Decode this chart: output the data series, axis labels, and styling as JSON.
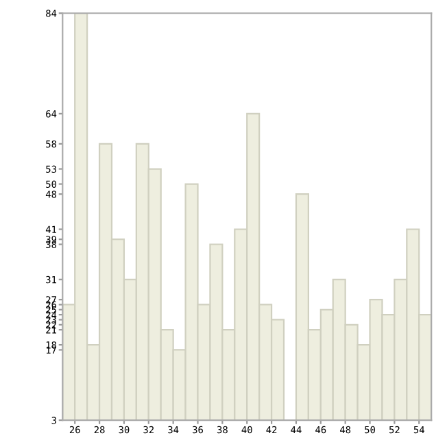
{
  "chart_data": {
    "type": "bar",
    "x": [
      25.5,
      26.5,
      27.5,
      28.5,
      29.5,
      30.5,
      31.5,
      32.5,
      33.5,
      34.5,
      35.5,
      36.5,
      37.5,
      38.5,
      39.5,
      40.5,
      41.5,
      42.5,
      43.5,
      44.5,
      45.5,
      46.5,
      47.5,
      48.5,
      49.5,
      50.5,
      51.5,
      52.5,
      53.5,
      54.5
    ],
    "values": [
      26,
      84,
      18,
      58,
      39,
      31,
      58,
      53,
      21,
      17,
      50,
      26,
      38,
      21,
      41,
      64,
      26,
      23,
      3,
      48,
      21,
      25,
      31,
      22,
      18,
      27,
      24,
      31,
      41,
      24
    ],
    "color": "#eeeedf",
    "xlim": [
      25,
      55
    ],
    "xticks": [
      26,
      28,
      30,
      32,
      34,
      36,
      38,
      40,
      42,
      44,
      46,
      48,
      50,
      52,
      54
    ],
    "ylim": [
      3,
      84
    ],
    "yticks": [
      3,
      17,
      18,
      21,
      22,
      23,
      24,
      25,
      26,
      27,
      31,
      38,
      39,
      41,
      48,
      50,
      53,
      58,
      64,
      84
    ],
    "grid": false
  }
}
